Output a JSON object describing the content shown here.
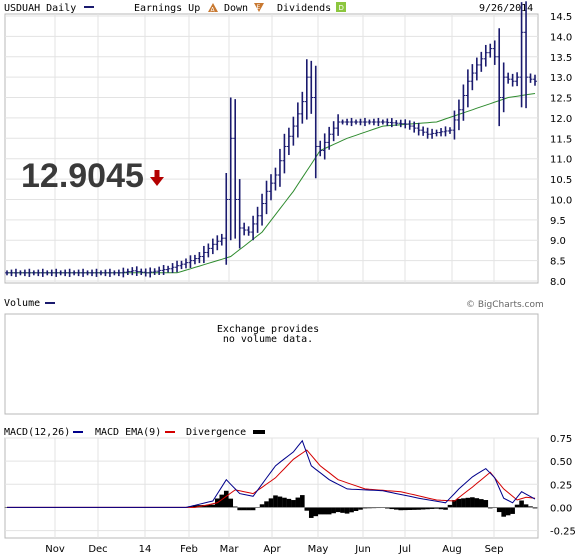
{
  "header": {
    "symbol": "USDUAH Daily",
    "earnings_up_label": "Earnings Up",
    "down_label": "Down",
    "dividends_label": "Dividends",
    "date": "9/26/2014",
    "earnings_icon": "A",
    "down_icon": "E",
    "dividends_icon": "D"
  },
  "last_price": "12.9045",
  "volume": {
    "label": "Volume",
    "credit": "© BigCharts.com",
    "note_line1": "Exchange provides",
    "note_line2": "no volume data."
  },
  "macd_legend": {
    "macd": "MACD(12,26)",
    "ema": "MACD EMA(9)",
    "divergence": "Divergence"
  },
  "colors": {
    "bar": "#1a1a6e",
    "ma": "#2e8b2e",
    "macd": "#00008b",
    "ema": "#d40000",
    "divergence": "#000000",
    "down_arrow": "#b30000"
  },
  "chart_data": [
    {
      "type": "ohlc",
      "title": "USDUAH Daily",
      "x_ticks": [
        "Nov",
        "Dec",
        "14",
        "Feb",
        "Mar",
        "Apr",
        "May",
        "Jun",
        "Jul",
        "Aug",
        "Sep"
      ],
      "y_ticks": [
        "14.5",
        "14.0",
        "13.5",
        "13.0",
        "12.5",
        "12.0",
        "11.5",
        "11.0",
        "10.5",
        "10.0",
        "9.5",
        "9.0",
        "8.5",
        "8.0"
      ],
      "ylim": [
        8.0,
        14.5
      ],
      "price_anchors": [
        [
          0,
          8.2
        ],
        [
          10,
          8.2
        ],
        [
          20,
          8.2
        ],
        [
          25,
          8.2
        ],
        [
          28,
          8.25
        ],
        [
          31,
          8.2
        ],
        [
          36,
          8.3
        ],
        [
          40,
          8.45
        ],
        [
          43,
          8.6
        ],
        [
          46,
          8.9
        ],
        [
          48,
          9.05
        ],
        [
          49,
          10.0
        ],
        [
          50,
          11.5
        ],
        [
          51,
          10.0
        ],
        [
          52,
          9.3
        ],
        [
          54,
          9.2
        ],
        [
          56,
          9.6
        ],
        [
          58,
          10.2
        ],
        [
          60,
          10.6
        ],
        [
          62,
          11.3
        ],
        [
          64,
          11.8
        ],
        [
          66,
          12.4
        ],
        [
          67,
          13.0
        ],
        [
          68,
          12.5
        ],
        [
          69,
          11.3
        ],
        [
          70,
          11.2
        ],
        [
          72,
          11.6
        ],
        [
          74,
          11.9
        ],
        [
          79,
          11.9
        ],
        [
          84,
          11.9
        ],
        [
          89,
          11.85
        ],
        [
          94,
          11.6
        ],
        [
          99,
          11.7
        ],
        [
          101,
          12.2
        ],
        [
          103,
          12.9
        ],
        [
          105,
          13.3
        ],
        [
          107,
          13.6
        ],
        [
          108,
          13.7
        ],
        [
          109,
          13.5
        ],
        [
          110,
          12.5
        ],
        [
          111,
          13.0
        ],
        [
          113,
          12.9
        ],
        [
          114,
          13.0
        ],
        [
          115,
          14.1
        ],
        [
          116,
          13.0
        ],
        [
          118,
          12.9
        ]
      ],
      "ma_anchors": [
        [
          0,
          8.2
        ],
        [
          38,
          8.2
        ],
        [
          44,
          8.4
        ],
        [
          50,
          8.6
        ],
        [
          57,
          9.2
        ],
        [
          64,
          10.2
        ],
        [
          70,
          11.2
        ],
        [
          76,
          11.5
        ],
        [
          84,
          11.8
        ],
        [
          96,
          11.9
        ],
        [
          104,
          12.2
        ],
        [
          112,
          12.5
        ],
        [
          118,
          12.6
        ]
      ]
    },
    {
      "type": "line",
      "title": "MACD(12,26)",
      "y_ticks": [
        "0.75",
        "0.50",
        "0.25",
        "0.00",
        "-0.25"
      ],
      "ylim": [
        -0.33,
        0.75
      ],
      "series": [
        {
          "name": "MACD(12,26)",
          "anchors": [
            [
              0,
              0.0
            ],
            [
              40,
              0.0
            ],
            [
              46,
              0.07
            ],
            [
              49,
              0.3
            ],
            [
              52,
              0.15
            ],
            [
              55,
              0.12
            ],
            [
              60,
              0.45
            ],
            [
              64,
              0.6
            ],
            [
              66,
              0.72
            ],
            [
              68,
              0.45
            ],
            [
              72,
              0.3
            ],
            [
              76,
              0.2
            ],
            [
              84,
              0.18
            ],
            [
              92,
              0.1
            ],
            [
              98,
              0.05
            ],
            [
              101,
              0.2
            ],
            [
              104,
              0.33
            ],
            [
              107,
              0.42
            ],
            [
              109,
              0.32
            ],
            [
              111,
              0.1
            ],
            [
              113,
              0.05
            ],
            [
              115,
              0.17
            ],
            [
              118,
              0.09
            ]
          ]
        },
        {
          "name": "MACD EMA(9)",
          "anchors": [
            [
              0,
              0.0
            ],
            [
              42,
              0.0
            ],
            [
              47,
              0.05
            ],
            [
              51,
              0.19
            ],
            [
              55,
              0.15
            ],
            [
              60,
              0.32
            ],
            [
              64,
              0.52
            ],
            [
              67,
              0.62
            ],
            [
              70,
              0.45
            ],
            [
              74,
              0.3
            ],
            [
              80,
              0.2
            ],
            [
              88,
              0.17
            ],
            [
              96,
              0.08
            ],
            [
              100,
              0.07
            ],
            [
              104,
              0.22
            ],
            [
              108,
              0.38
            ],
            [
              111,
              0.2
            ],
            [
              114,
              0.08
            ],
            [
              116,
              0.11
            ],
            [
              118,
              0.1
            ]
          ]
        }
      ]
    }
  ]
}
